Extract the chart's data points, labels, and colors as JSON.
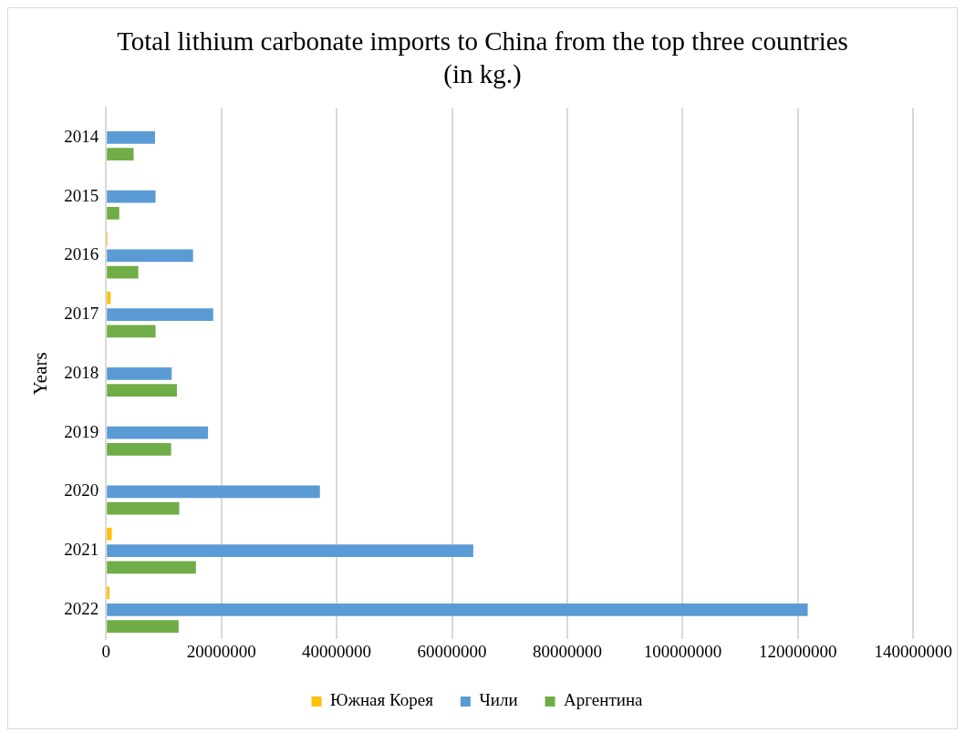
{
  "chart_data": {
    "type": "bar",
    "orientation": "horizontal",
    "title": "Total lithium carbonate imports to China from the top three countries (in kg.)",
    "ylabel": "Years",
    "categories": [
      "2014",
      "2015",
      "2016",
      "2017",
      "2018",
      "2019",
      "2020",
      "2021",
      "2022"
    ],
    "series": [
      {
        "name": "Южная Корея",
        "color": "#ffc000",
        "values": [
          0,
          0,
          300000,
          800000,
          null,
          null,
          0,
          1000000,
          600000
        ]
      },
      {
        "name": "Чили",
        "color": "#5b9bd5",
        "values": [
          8500000,
          8600000,
          15100000,
          18600000,
          11400000,
          17700000,
          37100000,
          63700000,
          121700000
        ]
      },
      {
        "name": "Аргентина",
        "color": "#70ad47",
        "values": [
          4800000,
          2300000,
          5600000,
          8600000,
          12300000,
          11300000,
          12700000,
          15600000,
          12600000
        ]
      }
    ],
    "xlim": [
      0,
      140000000
    ],
    "xticks": [
      0,
      20000000,
      40000000,
      60000000,
      80000000,
      100000000,
      120000000,
      140000000
    ],
    "grid": "x",
    "legend": "bottom"
  }
}
